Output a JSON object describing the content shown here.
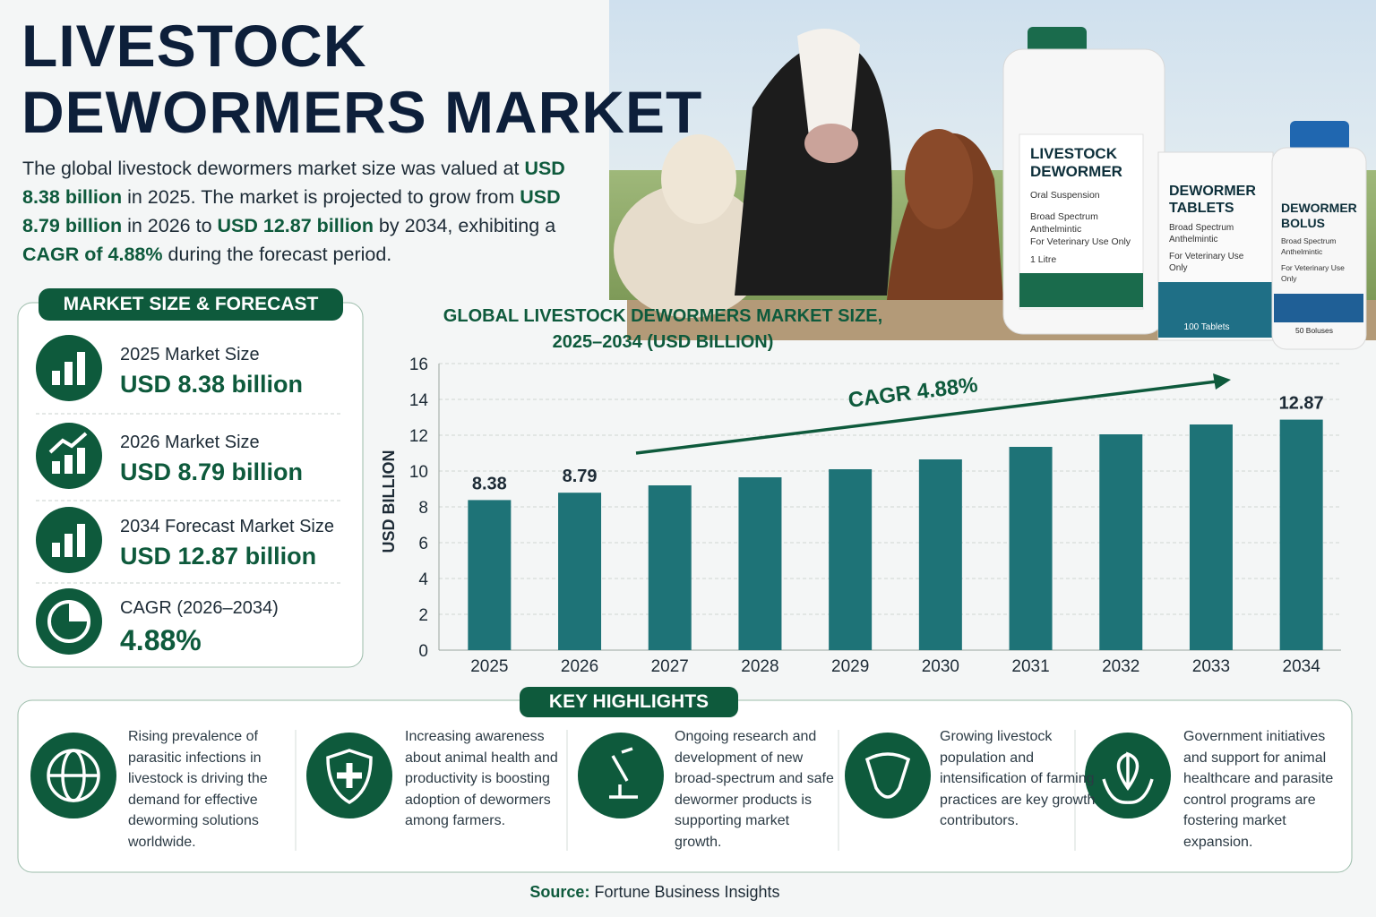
{
  "header": {
    "title": "LIVESTOCK DEWORMERS MARKET"
  },
  "intro": {
    "segments": [
      {
        "text": "The global livestock dewormers market size was valued at ",
        "emphasis": false
      },
      {
        "text": "USD 8.38 billion",
        "emphasis": true
      },
      {
        "text": " in 2025. The market is projected to grow from ",
        "emphasis": false
      },
      {
        "text": "USD 8.79 billion",
        "emphasis": true
      },
      {
        "text": " in 2026 to ",
        "emphasis": false
      },
      {
        "text": "USD 12.87 billion",
        "emphasis": true
      },
      {
        "text": " by 2034, exhibiting a ",
        "emphasis": false
      },
      {
        "text": "CAGR of 4.88%",
        "emphasis": true
      },
      {
        "text": " during the forecast period.",
        "emphasis": false
      }
    ]
  },
  "products": [
    {
      "name": "LIVESTOCK DEWORMER",
      "lines": [
        "Oral Suspension",
        "Broad Spectrum Anthelmintic",
        "For Veterinary Use Only",
        "1 Litre"
      ]
    },
    {
      "name": "DEWORMER TABLETS",
      "lines": [
        "Broad Spectrum Anthelmintic",
        "For Veterinary Use Only",
        "100 Tablets"
      ]
    },
    {
      "name": "DEWORMER BOLUS",
      "lines": [
        "Broad Spectrum Anthelmintic",
        "For Veterinary Use Only",
        "50 Boluses"
      ]
    }
  ],
  "side_panel": {
    "title": "MARKET SIZE & FORECAST",
    "items": [
      {
        "label": "2025 Market Size",
        "value": "USD 8.38 billion"
      },
      {
        "label": "2026 Market Size",
        "value": "USD 8.79 billion"
      },
      {
        "label": "2034 Forecast Market Size",
        "value": "USD 12.87 billion"
      },
      {
        "label": "CAGR (2026–2034)",
        "value": "4.88%"
      }
    ]
  },
  "chart_data": {
    "type": "bar",
    "title": [
      "GLOBAL LIVESTOCK DEWORMERS MARKET SIZE,",
      "2025–2034 (USD BILLION)"
    ],
    "ylabel": "USD BILLION",
    "categories": [
      "2025",
      "2026",
      "2027",
      "2028",
      "2029",
      "2030",
      "2031",
      "2032",
      "2033",
      "2034"
    ],
    "values": [
      8.38,
      8.79,
      9.2,
      9.65,
      10.1,
      10.65,
      11.35,
      12.05,
      12.6,
      12.87
    ],
    "value_labels": [
      "8.38",
      "8.79",
      null,
      null,
      null,
      null,
      null,
      null,
      null,
      "12.87"
    ],
    "color": "#1e7377",
    "ylim": [
      0,
      16
    ],
    "yticks": [
      0,
      2,
      4,
      6,
      8,
      10,
      12,
      14,
      16
    ],
    "grid": true,
    "annotation": "CAGR 4.88%"
  },
  "highlights": {
    "title": "KEY HIGHLIGHTS",
    "items": [
      "Rising prevalence of parasitic infections in livestock is driving the demand for effective deworming solutions worldwide.",
      "Increasing awareness about animal health and productivity is boosting adoption of dewormers among farmers.",
      "Ongoing research and development of new broad-spectrum and safe dewormer products is supporting market growth.",
      "Growing livestock population and intensification of farming practices are key growth contributors.",
      "Government initiatives and support for animal healthcare and parasite control programs are fostering market expansion."
    ]
  },
  "source": {
    "label": "Source:",
    "text": " Fortune Business Insights"
  }
}
